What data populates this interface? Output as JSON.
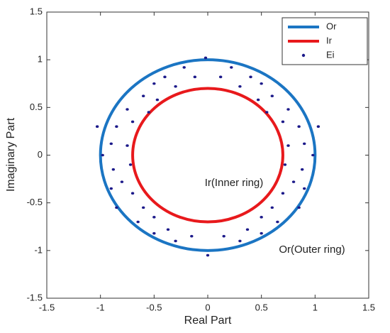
{
  "chart_data": {
    "type": "scatter",
    "x_label": "Real Part",
    "y_label": "Imaginary Part",
    "xlim": [
      -1.5,
      1.5
    ],
    "ylim": [
      -1.5,
      1.5
    ],
    "xticks": [
      -1.5,
      -1,
      -0.5,
      0,
      0.5,
      1,
      1.5
    ],
    "yticks": [
      -1.5,
      -1,
      -0.5,
      0,
      0.5,
      1,
      1.5
    ],
    "legend": "upper right",
    "annotations": [
      "Ir(Inner ring)",
      "Or(Outer ring)"
    ],
    "series": [
      {
        "name": "Or",
        "color": "#1b75c3",
        "radius": 1
      },
      {
        "name": "Ir",
        "color": "#e8191c",
        "radius": 0.7
      },
      {
        "name": "Ei",
        "color": "#1c1a8a",
        "x": [
          -0.02,
          -0.22,
          0.22,
          -0.4,
          0.4,
          -0.5,
          0.5,
          -0.6,
          0.6,
          -0.12,
          0.12,
          -0.3,
          0.3,
          -0.47,
          0.47,
          -0.55,
          0.55,
          -0.75,
          0.75,
          -0.7,
          0.7,
          -0.85,
          0.85,
          -1.03,
          1.03,
          -0.9,
          0.9,
          -0.75,
          0.75,
          -0.98,
          0.98,
          -0.72,
          0.72,
          -0.88,
          0.88,
          -0.8,
          0.8,
          -0.7,
          0.7,
          -0.9,
          0.9,
          -0.85,
          0.85,
          -0.6,
          0.6,
          -0.65,
          0.65,
          -0.5,
          0.5,
          -0.37,
          0.37,
          -0.5,
          0.5,
          -0.15,
          0.15,
          -0.3,
          0.3,
          0
        ],
        "y": [
          1.02,
          0.92,
          0.92,
          0.82,
          0.82,
          0.75,
          0.75,
          0.62,
          0.62,
          0.82,
          0.82,
          0.72,
          0.72,
          0.58,
          0.58,
          0.45,
          0.45,
          0.48,
          0.48,
          0.35,
          0.35,
          0.3,
          0.3,
          0.3,
          0.3,
          0.12,
          0.12,
          0.1,
          0.1,
          0,
          0,
          -0.1,
          -0.1,
          -0.15,
          -0.15,
          -0.28,
          -0.28,
          -0.4,
          -0.4,
          -0.35,
          -0.35,
          -0.55,
          -0.55,
          -0.55,
          -0.55,
          -0.7,
          -0.7,
          -0.65,
          -0.65,
          -0.78,
          -0.78,
          -0.82,
          -0.82,
          -0.85,
          -0.85,
          -0.9,
          -0.9,
          -1.05
        ]
      }
    ]
  }
}
